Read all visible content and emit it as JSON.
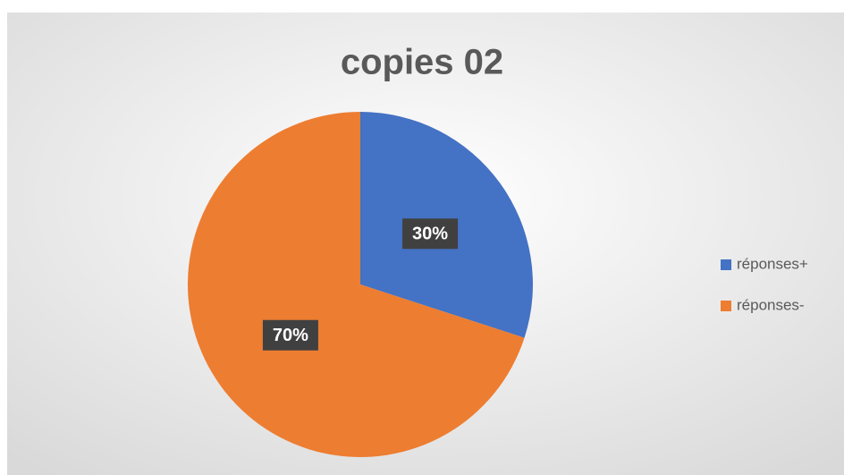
{
  "chart_data": {
    "type": "pie",
    "title": "copies 02",
    "categories": [
      "réponses+",
      "réponses-"
    ],
    "values": [
      30,
      70
    ],
    "value_labels": [
      "30%",
      "70%"
    ],
    "colors": [
      "#4472c4",
      "#ed7d31"
    ],
    "legend": "right"
  }
}
